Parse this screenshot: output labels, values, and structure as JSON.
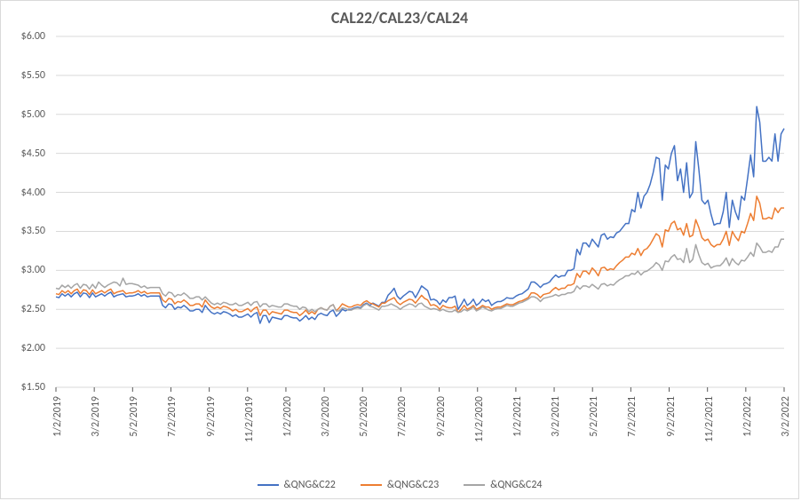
{
  "chart": {
    "type": "line",
    "title": "CAL22/CAL23/CAL24",
    "title_fontsize": 18,
    "title_fontweight": "bold",
    "title_color": "#595959",
    "background_color": "#ffffff",
    "border_color": "#d9d9d9",
    "grid_color": "#d9d9d9",
    "axis_text_color": "#595959",
    "axis_fontsize": 12,
    "line_width": 1.5,
    "y": {
      "min": 1.5,
      "max": 6.0,
      "step": 0.5,
      "format_prefix": "$",
      "format_decimals": 2
    },
    "x_labels": [
      "1/2/2019",
      "3/2/2019",
      "5/2/2019",
      "7/2/2019",
      "9/2/2019",
      "11/2/2019",
      "1/2/2020",
      "3/2/2020",
      "5/2/2020",
      "7/2/2020",
      "9/2/2020",
      "11/2/2020",
      "1/2/2021",
      "3/2/2021",
      "5/2/2021",
      "7/2/2021",
      "9/2/2021",
      "11/2/2021",
      "1/2/2022",
      "3/2/2022"
    ],
    "legend_position": "bottom",
    "series": [
      {
        "name": "&QNG&C22",
        "color": "#4472c4",
        "values": [
          2.66,
          2.65,
          2.7,
          2.67,
          2.7,
          2.66,
          2.7,
          2.72,
          2.66,
          2.71,
          2.7,
          2.65,
          2.71,
          2.66,
          2.68,
          2.7,
          2.67,
          2.7,
          2.72,
          2.66,
          2.68,
          2.69,
          2.7,
          2.66,
          2.67,
          2.67,
          2.68,
          2.7,
          2.67,
          2.69,
          2.66,
          2.67,
          2.67,
          2.67,
          2.67,
          2.55,
          2.52,
          2.57,
          2.56,
          2.5,
          2.53,
          2.52,
          2.55,
          2.52,
          2.48,
          2.48,
          2.5,
          2.5,
          2.46,
          2.55,
          2.5,
          2.46,
          2.44,
          2.46,
          2.44,
          2.47,
          2.46,
          2.44,
          2.41,
          2.43,
          2.4,
          2.4,
          2.42,
          2.44,
          2.4,
          2.44,
          2.46,
          2.32,
          2.42,
          2.42,
          2.33,
          2.4,
          2.39,
          2.38,
          2.37,
          2.42,
          2.42,
          2.4,
          2.39,
          2.39,
          2.35,
          2.38,
          2.42,
          2.37,
          2.4,
          2.37,
          2.43,
          2.45,
          2.43,
          2.42,
          2.47,
          2.49,
          2.41,
          2.45,
          2.5,
          2.48,
          2.5,
          2.5,
          2.52,
          2.53,
          2.52,
          2.56,
          2.58,
          2.55,
          2.58,
          2.56,
          2.54,
          2.59,
          2.59,
          2.68,
          2.72,
          2.77,
          2.67,
          2.63,
          2.67,
          2.7,
          2.73,
          2.72,
          2.65,
          2.72,
          2.8,
          2.77,
          2.74,
          2.62,
          2.63,
          2.61,
          2.56,
          2.62,
          2.59,
          2.65,
          2.65,
          2.67,
          2.5,
          2.56,
          2.63,
          2.55,
          2.58,
          2.63,
          2.55,
          2.58,
          2.63,
          2.6,
          2.62,
          2.55,
          2.58,
          2.6,
          2.6,
          2.62,
          2.65,
          2.64,
          2.64,
          2.67,
          2.69,
          2.7,
          2.73,
          2.76,
          2.85,
          2.85,
          2.82,
          2.78,
          2.82,
          2.83,
          2.85,
          2.9,
          2.94,
          2.91,
          2.93,
          2.93,
          3.0,
          3.0,
          3.02,
          3.27,
          3.2,
          3.35,
          3.35,
          3.3,
          3.4,
          3.35,
          3.3,
          3.45,
          3.47,
          3.4,
          3.43,
          3.42,
          3.48,
          3.5,
          3.55,
          3.6,
          3.6,
          3.78,
          3.75,
          4.0,
          3.8,
          3.95,
          4.0,
          4.1,
          4.25,
          4.45,
          4.43,
          3.9,
          4.35,
          4.3,
          4.5,
          4.6,
          4.15,
          4.3,
          4.0,
          4.38,
          3.93,
          4.0,
          4.65,
          4.3,
          3.9,
          3.85,
          3.9,
          3.72,
          3.58,
          3.6,
          3.6,
          3.75,
          4.0,
          3.55,
          3.9,
          3.75,
          3.65,
          3.95,
          3.9,
          4.18,
          4.48,
          4.2,
          5.1,
          4.9,
          4.4,
          4.4,
          4.45,
          4.4,
          4.75,
          4.4,
          4.75,
          4.82
        ]
      },
      {
        "name": "&QNG&C23",
        "color": "#ed7d31",
        "values": [
          2.7,
          2.69,
          2.74,
          2.71,
          2.74,
          2.7,
          2.74,
          2.76,
          2.7,
          2.75,
          2.74,
          2.69,
          2.75,
          2.7,
          2.72,
          2.74,
          2.71,
          2.74,
          2.76,
          2.7,
          2.72,
          2.73,
          2.74,
          2.7,
          2.71,
          2.71,
          2.72,
          2.74,
          2.71,
          2.73,
          2.7,
          2.71,
          2.71,
          2.71,
          2.71,
          2.62,
          2.59,
          2.64,
          2.63,
          2.57,
          2.6,
          2.59,
          2.62,
          2.59,
          2.55,
          2.55,
          2.57,
          2.57,
          2.53,
          2.62,
          2.57,
          2.53,
          2.51,
          2.53,
          2.51,
          2.54,
          2.53,
          2.51,
          2.48,
          2.5,
          2.47,
          2.47,
          2.49,
          2.51,
          2.47,
          2.51,
          2.53,
          2.42,
          2.49,
          2.49,
          2.43,
          2.47,
          2.46,
          2.45,
          2.44,
          2.49,
          2.49,
          2.47,
          2.46,
          2.46,
          2.42,
          2.45,
          2.49,
          2.44,
          2.47,
          2.44,
          2.5,
          2.52,
          2.5,
          2.49,
          2.54,
          2.56,
          2.48,
          2.52,
          2.57,
          2.55,
          2.53,
          2.53,
          2.55,
          2.56,
          2.55,
          2.59,
          2.61,
          2.58,
          2.57,
          2.55,
          2.53,
          2.58,
          2.58,
          2.61,
          2.63,
          2.65,
          2.59,
          2.56,
          2.59,
          2.61,
          2.63,
          2.62,
          2.58,
          2.63,
          2.68,
          2.64,
          2.62,
          2.55,
          2.56,
          2.54,
          2.5,
          2.55,
          2.53,
          2.52,
          2.52,
          2.54,
          2.46,
          2.5,
          2.55,
          2.5,
          2.52,
          2.55,
          2.5,
          2.52,
          2.55,
          2.53,
          2.53,
          2.5,
          2.52,
          2.53,
          2.53,
          2.55,
          2.57,
          2.56,
          2.56,
          2.58,
          2.6,
          2.61,
          2.63,
          2.65,
          2.71,
          2.71,
          2.69,
          2.65,
          2.69,
          2.7,
          2.71,
          2.75,
          2.78,
          2.75,
          2.77,
          2.77,
          2.81,
          2.81,
          2.83,
          2.96,
          2.91,
          2.99,
          2.99,
          2.95,
          3.03,
          2.99,
          2.93,
          3.03,
          3.04,
          3.0,
          3.02,
          3.01,
          3.06,
          3.1,
          3.13,
          3.17,
          3.17,
          3.22,
          3.2,
          3.28,
          3.19,
          3.26,
          3.28,
          3.33,
          3.4,
          3.47,
          3.44,
          3.3,
          3.52,
          3.5,
          3.6,
          3.63,
          3.52,
          3.54,
          3.45,
          3.6,
          3.43,
          3.45,
          3.65,
          3.55,
          3.42,
          3.38,
          3.4,
          3.33,
          3.3,
          3.33,
          3.33,
          3.4,
          3.5,
          3.32,
          3.5,
          3.43,
          3.38,
          3.5,
          3.48,
          3.6,
          3.73,
          3.64,
          3.95,
          3.86,
          3.66,
          3.66,
          3.68,
          3.66,
          3.8,
          3.74,
          3.8,
          3.8
        ]
      },
      {
        "name": "&QNG&C24",
        "color": "#a5a5a5",
        "values": [
          2.77,
          2.76,
          2.81,
          2.78,
          2.81,
          2.77,
          2.81,
          2.83,
          2.77,
          2.82,
          2.81,
          2.76,
          2.82,
          2.77,
          2.85,
          2.81,
          2.78,
          2.81,
          2.83,
          2.85,
          2.84,
          2.8,
          2.9,
          2.82,
          2.83,
          2.83,
          2.82,
          2.81,
          2.78,
          2.8,
          2.77,
          2.78,
          2.78,
          2.78,
          2.78,
          2.7,
          2.67,
          2.72,
          2.71,
          2.66,
          2.69,
          2.68,
          2.71,
          2.68,
          2.64,
          2.64,
          2.66,
          2.66,
          2.62,
          2.66,
          2.62,
          2.58,
          2.56,
          2.58,
          2.56,
          2.59,
          2.58,
          2.56,
          2.56,
          2.58,
          2.55,
          2.55,
          2.57,
          2.59,
          2.55,
          2.59,
          2.6,
          2.53,
          2.57,
          2.57,
          2.53,
          2.55,
          2.54,
          2.53,
          2.53,
          2.57,
          2.57,
          2.55,
          2.54,
          2.54,
          2.5,
          2.53,
          2.52,
          2.47,
          2.5,
          2.47,
          2.5,
          2.52,
          2.5,
          2.49,
          2.54,
          2.56,
          2.48,
          2.48,
          2.52,
          2.51,
          2.49,
          2.49,
          2.51,
          2.52,
          2.51,
          2.55,
          2.57,
          2.54,
          2.53,
          2.51,
          2.49,
          2.54,
          2.54,
          2.55,
          2.57,
          2.55,
          2.53,
          2.5,
          2.53,
          2.55,
          2.57,
          2.56,
          2.53,
          2.57,
          2.58,
          2.54,
          2.52,
          2.5,
          2.51,
          2.5,
          2.48,
          2.5,
          2.48,
          2.47,
          2.47,
          2.49,
          2.46,
          2.47,
          2.5,
          2.48,
          2.5,
          2.53,
          2.48,
          2.5,
          2.53,
          2.51,
          2.49,
          2.48,
          2.5,
          2.51,
          2.51,
          2.53,
          2.55,
          2.54,
          2.54,
          2.56,
          2.58,
          2.59,
          2.61,
          2.63,
          2.66,
          2.66,
          2.64,
          2.6,
          2.64,
          2.65,
          2.66,
          2.67,
          2.69,
          2.67,
          2.69,
          2.69,
          2.71,
          2.71,
          2.73,
          2.8,
          2.76,
          2.8,
          2.8,
          2.78,
          2.82,
          2.79,
          2.76,
          2.82,
          2.83,
          2.8,
          2.82,
          2.81,
          2.85,
          2.88,
          2.9,
          2.93,
          2.93,
          2.96,
          2.95,
          2.99,
          2.94,
          2.98,
          2.99,
          3.02,
          3.05,
          3.1,
          3.07,
          3.0,
          3.12,
          3.11,
          3.17,
          3.2,
          3.14,
          3.15,
          3.1,
          3.28,
          3.1,
          3.14,
          3.33,
          3.2,
          3.1,
          3.07,
          3.09,
          3.03,
          3.05,
          3.06,
          3.06,
          3.1,
          3.16,
          3.06,
          3.15,
          3.1,
          3.07,
          3.13,
          3.12,
          3.17,
          3.23,
          3.18,
          3.35,
          3.3,
          3.23,
          3.23,
          3.25,
          3.23,
          3.3,
          3.3,
          3.4,
          3.4
        ]
      }
    ]
  }
}
